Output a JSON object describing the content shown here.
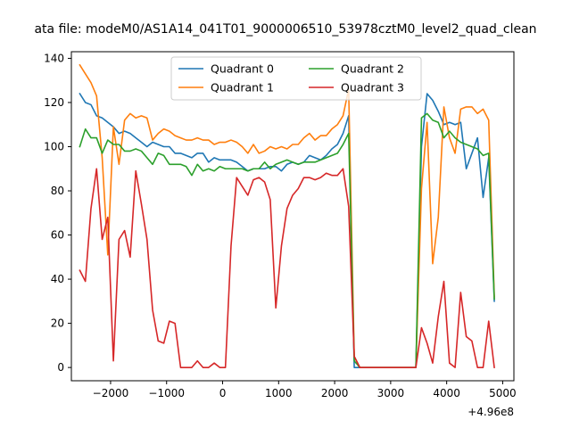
{
  "chart_data": {
    "type": "line",
    "title": "ata file: modeM0/AS1A14_041T01_9000006510_53978cztM0_level2_quad_clean",
    "xlabel": "",
    "ylabel": "",
    "x_offset_label": "+4.96e8",
    "xlim": [
      -2700,
      5200
    ],
    "ylim": [
      -6,
      143
    ],
    "xticks": [
      -2000,
      -1000,
      0,
      1000,
      2000,
      3000,
      4000,
      5000
    ],
    "xtick_labels": [
      "−2000",
      "−1000",
      "0",
      "1000",
      "2000",
      "3000",
      "4000",
      "5000"
    ],
    "yticks": [
      0,
      20,
      40,
      60,
      80,
      100,
      120,
      140
    ],
    "ytick_labels": [
      "0",
      "20",
      "40",
      "60",
      "80",
      "100",
      "120",
      "140"
    ],
    "grid": false,
    "legend": "upper center, 2 columns",
    "series": [
      {
        "name": "Quadrant 0",
        "color": "#1f77b4",
        "points": [
          [
            -2550,
            124
          ],
          [
            -2450,
            120
          ],
          [
            -2350,
            119
          ],
          [
            -2250,
            114
          ],
          [
            -2150,
            113
          ],
          [
            -2050,
            111
          ],
          [
            -1950,
            109
          ],
          [
            -1850,
            106
          ],
          [
            -1750,
            107
          ],
          [
            -1650,
            106
          ],
          [
            -1550,
            104
          ],
          [
            -1450,
            102
          ],
          [
            -1350,
            100
          ],
          [
            -1250,
            102
          ],
          [
            -1150,
            101
          ],
          [
            -1050,
            100
          ],
          [
            -950,
            100
          ],
          [
            -850,
            97
          ],
          [
            -750,
            97
          ],
          [
            -650,
            96
          ],
          [
            -550,
            95
          ],
          [
            -450,
            97
          ],
          [
            -350,
            97
          ],
          [
            -250,
            93
          ],
          [
            -150,
            95
          ],
          [
            -50,
            94
          ],
          [
            50,
            94
          ],
          [
            150,
            94
          ],
          [
            250,
            93
          ],
          [
            350,
            91
          ],
          [
            450,
            89
          ],
          [
            550,
            90
          ],
          [
            650,
            90
          ],
          [
            750,
            90
          ],
          [
            850,
            91
          ],
          [
            950,
            91
          ],
          [
            1050,
            89
          ],
          [
            1150,
            92
          ],
          [
            1250,
            93
          ],
          [
            1350,
            92
          ],
          [
            1450,
            93
          ],
          [
            1550,
            96
          ],
          [
            1650,
            95
          ],
          [
            1750,
            94
          ],
          [
            1850,
            96
          ],
          [
            1950,
            99
          ],
          [
            2050,
            101
          ],
          [
            2150,
            106
          ],
          [
            2250,
            114
          ],
          [
            2350,
            0
          ],
          [
            2450,
            0
          ],
          [
            2550,
            0
          ],
          [
            2650,
            0
          ],
          [
            2750,
            0
          ],
          [
            2850,
            0
          ],
          [
            2950,
            0
          ],
          [
            3050,
            0
          ],
          [
            3150,
            0
          ],
          [
            3250,
            0
          ],
          [
            3350,
            0
          ],
          [
            3450,
            0
          ],
          [
            3550,
            100
          ],
          [
            3650,
            124
          ],
          [
            3750,
            121
          ],
          [
            3850,
            116
          ],
          [
            3950,
            110
          ],
          [
            4050,
            111
          ],
          [
            4150,
            110
          ],
          [
            4250,
            111
          ],
          [
            4350,
            90
          ],
          [
            4450,
            97
          ],
          [
            4550,
            104
          ],
          [
            4650,
            77
          ],
          [
            4750,
            95
          ],
          [
            4850,
            30
          ]
        ]
      },
      {
        "name": "Quadrant 1",
        "color": "#ff7f0e",
        "points": [
          [
            -2550,
            137
          ],
          [
            -2450,
            133
          ],
          [
            -2350,
            129
          ],
          [
            -2250,
            123
          ],
          [
            -2150,
            95
          ],
          [
            -2050,
            51
          ],
          [
            -1950,
            109
          ],
          [
            -1850,
            92
          ],
          [
            -1750,
            112
          ],
          [
            -1650,
            115
          ],
          [
            -1550,
            113
          ],
          [
            -1450,
            114
          ],
          [
            -1350,
            113
          ],
          [
            -1250,
            103
          ],
          [
            -1150,
            106
          ],
          [
            -1050,
            108
          ],
          [
            -950,
            107
          ],
          [
            -850,
            105
          ],
          [
            -750,
            104
          ],
          [
            -650,
            103
          ],
          [
            -550,
            103
          ],
          [
            -450,
            104
          ],
          [
            -350,
            103
          ],
          [
            -250,
            103
          ],
          [
            -150,
            101
          ],
          [
            -50,
            102
          ],
          [
            50,
            102
          ],
          [
            150,
            103
          ],
          [
            250,
            102
          ],
          [
            350,
            100
          ],
          [
            450,
            97
          ],
          [
            550,
            101
          ],
          [
            650,
            97
          ],
          [
            750,
            98
          ],
          [
            850,
            100
          ],
          [
            950,
            99
          ],
          [
            1050,
            100
          ],
          [
            1150,
            99
          ],
          [
            1250,
            101
          ],
          [
            1350,
            101
          ],
          [
            1450,
            104
          ],
          [
            1550,
            106
          ],
          [
            1650,
            103
          ],
          [
            1750,
            105
          ],
          [
            1850,
            105
          ],
          [
            1950,
            108
          ],
          [
            2050,
            110
          ],
          [
            2150,
            114
          ],
          [
            2250,
            126
          ],
          [
            2350,
            5
          ],
          [
            2450,
            0
          ],
          [
            2550,
            0
          ],
          [
            2650,
            0
          ],
          [
            2750,
            0
          ],
          [
            2850,
            0
          ],
          [
            2950,
            0
          ],
          [
            3050,
            0
          ],
          [
            3150,
            0
          ],
          [
            3250,
            0
          ],
          [
            3350,
            0
          ],
          [
            3450,
            0
          ],
          [
            3550,
            81
          ],
          [
            3650,
            111
          ],
          [
            3750,
            47
          ],
          [
            3850,
            68
          ],
          [
            3950,
            118
          ],
          [
            4050,
            104
          ],
          [
            4150,
            97
          ],
          [
            4250,
            117
          ],
          [
            4350,
            118
          ],
          [
            4450,
            118
          ],
          [
            4550,
            115
          ],
          [
            4650,
            117
          ],
          [
            4750,
            112
          ],
          [
            4850,
            32
          ]
        ]
      },
      {
        "name": "Quadrant 2",
        "color": "#2ca02c",
        "points": [
          [
            -2550,
            100
          ],
          [
            -2450,
            108
          ],
          [
            -2350,
            104
          ],
          [
            -2250,
            104
          ],
          [
            -2150,
            97
          ],
          [
            -2050,
            103
          ],
          [
            -1950,
            101
          ],
          [
            -1850,
            101
          ],
          [
            -1750,
            98
          ],
          [
            -1650,
            98
          ],
          [
            -1550,
            99
          ],
          [
            -1450,
            98
          ],
          [
            -1350,
            95
          ],
          [
            -1250,
            92
          ],
          [
            -1150,
            97
          ],
          [
            -1050,
            96
          ],
          [
            -950,
            92
          ],
          [
            -850,
            92
          ],
          [
            -750,
            92
          ],
          [
            -650,
            91
          ],
          [
            -550,
            87
          ],
          [
            -450,
            92
          ],
          [
            -350,
            89
          ],
          [
            -250,
            90
          ],
          [
            -150,
            89
          ],
          [
            -50,
            91
          ],
          [
            50,
            90
          ],
          [
            150,
            90
          ],
          [
            250,
            90
          ],
          [
            350,
            90
          ],
          [
            450,
            89
          ],
          [
            550,
            90
          ],
          [
            650,
            90
          ],
          [
            750,
            93
          ],
          [
            850,
            90
          ],
          [
            950,
            92
          ],
          [
            1050,
            93
          ],
          [
            1150,
            94
          ],
          [
            1250,
            93
          ],
          [
            1350,
            92
          ],
          [
            1450,
            93
          ],
          [
            1550,
            93
          ],
          [
            1650,
            93
          ],
          [
            1750,
            94
          ],
          [
            1850,
            95
          ],
          [
            1950,
            96
          ],
          [
            2050,
            97
          ],
          [
            2150,
            101
          ],
          [
            2250,
            106
          ],
          [
            2350,
            3
          ],
          [
            2450,
            0
          ],
          [
            2550,
            0
          ],
          [
            2650,
            0
          ],
          [
            2750,
            0
          ],
          [
            2850,
            0
          ],
          [
            2950,
            0
          ],
          [
            3050,
            0
          ],
          [
            3150,
            0
          ],
          [
            3250,
            0
          ],
          [
            3350,
            0
          ],
          [
            3450,
            0
          ],
          [
            3550,
            113
          ],
          [
            3650,
            115
          ],
          [
            3750,
            112
          ],
          [
            3850,
            111
          ],
          [
            3950,
            104
          ],
          [
            4050,
            107
          ],
          [
            4150,
            104
          ],
          [
            4250,
            102
          ],
          [
            4350,
            101
          ],
          [
            4450,
            100
          ],
          [
            4550,
            99
          ],
          [
            4650,
            96
          ],
          [
            4750,
            97
          ],
          [
            4850,
            31
          ]
        ]
      },
      {
        "name": "Quadrant 3",
        "color": "#d62728",
        "points": [
          [
            -2550,
            44
          ],
          [
            -2450,
            39
          ],
          [
            -2350,
            72
          ],
          [
            -2250,
            90
          ],
          [
            -2150,
            58
          ],
          [
            -2050,
            68
          ],
          [
            -1950,
            3
          ],
          [
            -1850,
            58
          ],
          [
            -1750,
            62
          ],
          [
            -1650,
            50
          ],
          [
            -1550,
            89
          ],
          [
            -1450,
            74
          ],
          [
            -1350,
            58
          ],
          [
            -1250,
            26
          ],
          [
            -1150,
            12
          ],
          [
            -1050,
            11
          ],
          [
            -950,
            21
          ],
          [
            -850,
            20
          ],
          [
            -750,
            0
          ],
          [
            -650,
            0
          ],
          [
            -550,
            0
          ],
          [
            -450,
            3
          ],
          [
            -350,
            0
          ],
          [
            -250,
            0
          ],
          [
            -150,
            2
          ],
          [
            -50,
            0
          ],
          [
            50,
            0
          ],
          [
            150,
            55
          ],
          [
            250,
            86
          ],
          [
            350,
            82
          ],
          [
            450,
            78
          ],
          [
            550,
            85
          ],
          [
            650,
            86
          ],
          [
            750,
            84
          ],
          [
            850,
            76
          ],
          [
            950,
            27
          ],
          [
            1050,
            55
          ],
          [
            1150,
            72
          ],
          [
            1250,
            78
          ],
          [
            1350,
            81
          ],
          [
            1450,
            86
          ],
          [
            1550,
            86
          ],
          [
            1650,
            85
          ],
          [
            1750,
            86
          ],
          [
            1850,
            88
          ],
          [
            1950,
            87
          ],
          [
            2050,
            87
          ],
          [
            2150,
            90
          ],
          [
            2250,
            73
          ],
          [
            2350,
            5
          ],
          [
            2450,
            0
          ],
          [
            2550,
            0
          ],
          [
            2650,
            0
          ],
          [
            2750,
            0
          ],
          [
            2850,
            0
          ],
          [
            2950,
            0
          ],
          [
            3050,
            0
          ],
          [
            3150,
            0
          ],
          [
            3250,
            0
          ],
          [
            3350,
            0
          ],
          [
            3450,
            0
          ],
          [
            3550,
            18
          ],
          [
            3650,
            11
          ],
          [
            3750,
            2
          ],
          [
            3850,
            23
          ],
          [
            3950,
            39
          ],
          [
            4050,
            2
          ],
          [
            4150,
            0
          ],
          [
            4250,
            34
          ],
          [
            4350,
            14
          ],
          [
            4450,
            12
          ],
          [
            4550,
            0
          ],
          [
            4650,
            0
          ],
          [
            4750,
            21
          ],
          [
            4850,
            0
          ]
        ]
      }
    ]
  }
}
